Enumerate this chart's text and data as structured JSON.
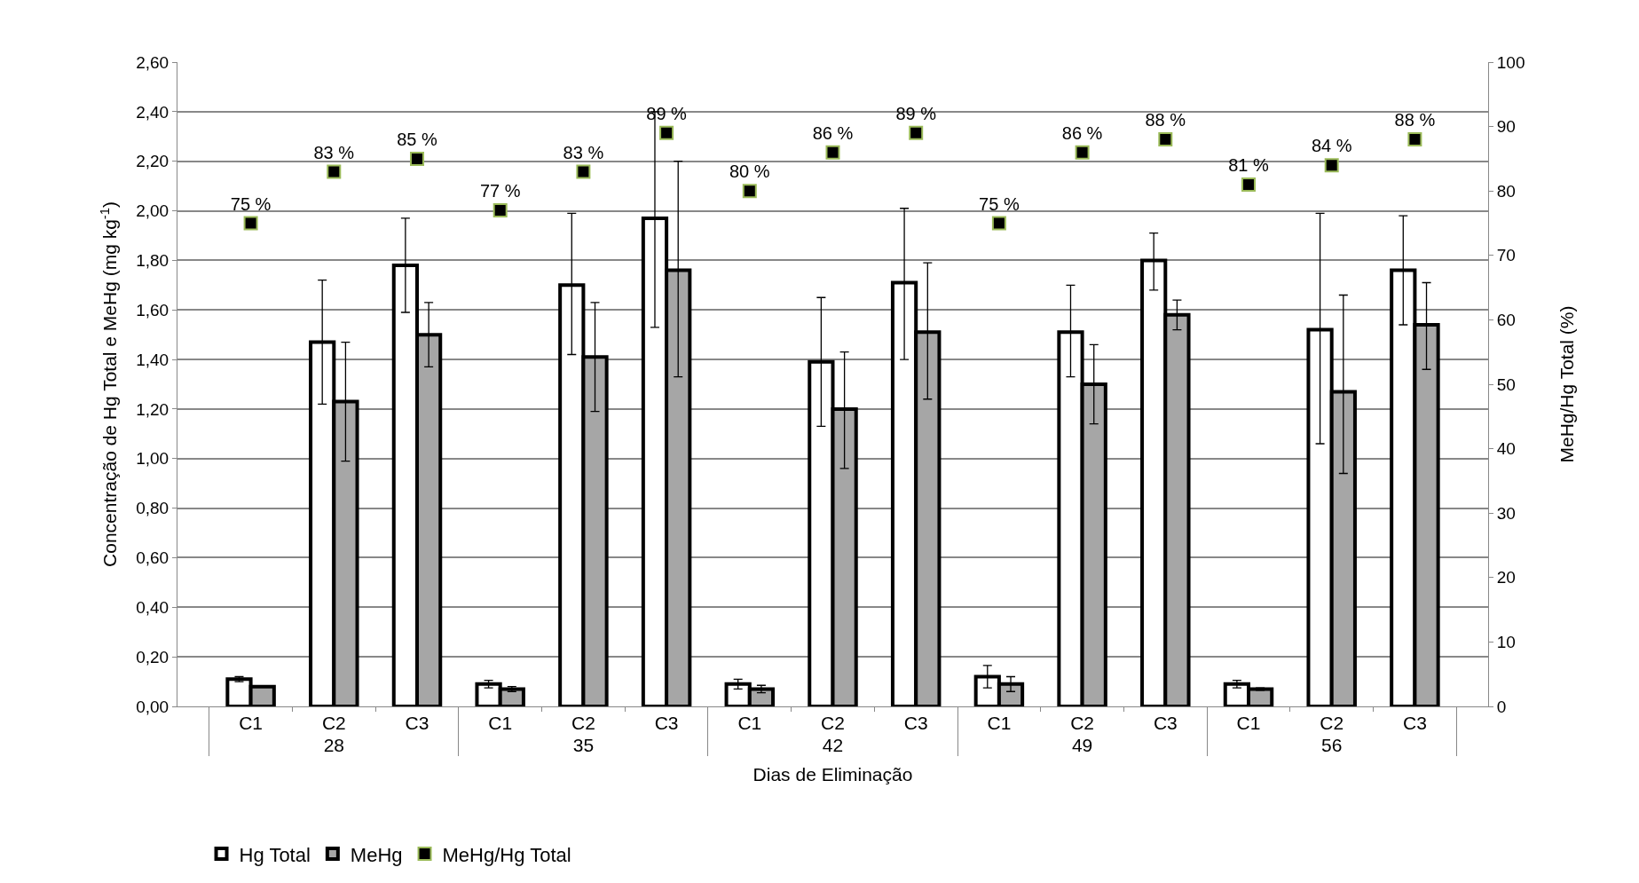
{
  "chart_data": {
    "type": "bar",
    "xlabel": "Dias de Eliminação",
    "ylabel": "Concentração de Hg Total e MeHg (mg kg$^{-1}$)",
    "y2label": "MeHg/Hg Total (%)",
    "categories": [
      "C1",
      "C2",
      "C3",
      "C1",
      "C2",
      "C3",
      "C1",
      "C2",
      "C3",
      "C1",
      "C2",
      "C3",
      "C1",
      "C2",
      "C3"
    ],
    "annotations": [
      "28",
      "35",
      "42",
      "49",
      "56"
    ],
    "series": [
      {
        "name": "Hg Total",
        "color": "#ffffff",
        "values": [
          0.11,
          1.47,
          1.78,
          0.09,
          1.7,
          1.97,
          0.09,
          1.39,
          1.71,
          0.12,
          1.51,
          1.8,
          0.09,
          1.52,
          1.76
        ],
        "errors": [
          0.01,
          [
            1.22,
            1.72
          ],
          [
            1.59,
            1.97
          ],
          0.015,
          [
            1.42,
            1.99
          ],
          [
            1.53,
            2.4
          ],
          0.02,
          [
            1.13,
            1.65
          ],
          [
            1.4,
            2.01
          ],
          0.045,
          [
            1.33,
            1.7
          ],
          [
            1.68,
            1.91
          ],
          0.015,
          [
            1.06,
            1.99
          ],
          [
            1.54,
            1.98
          ]
        ]
      },
      {
        "name": "MeHg",
        "color": "#a6a6a6",
        "values": [
          0.08,
          1.23,
          1.5,
          0.07,
          1.41,
          1.76,
          0.07,
          1.2,
          1.51,
          0.09,
          1.3,
          1.58,
          0.07,
          1.27,
          1.54
        ],
        "errors": [
          null,
          [
            0.99,
            1.47
          ],
          [
            1.37,
            1.63
          ],
          0.01,
          [
            1.19,
            1.63
          ],
          [
            1.33,
            2.2
          ],
          0.015,
          [
            0.96,
            1.43
          ],
          [
            1.24,
            1.79
          ],
          0.03,
          [
            1.14,
            1.46
          ],
          [
            1.52,
            1.64
          ],
          0.005,
          [
            0.94,
            1.66
          ],
          [
            1.36,
            1.71
          ]
        ]
      },
      {
        "name": "MeHg/Hg Total",
        "type": "scatter",
        "axis": "y2",
        "marker": "square",
        "color": "#000000",
        "values": [
          75,
          83,
          85,
          77,
          83,
          89,
          80,
          86,
          89,
          75,
          86,
          88,
          81,
          84,
          88
        ],
        "value_labels": [
          "75 %",
          "83 %",
          "85 %",
          "77 %",
          "83 %",
          "89 %",
          "80 %",
          "86 %",
          "89 %",
          "75 %",
          "86 %",
          "88 %",
          "81 %",
          "84 %",
          "88 %"
        ]
      }
    ],
    "ylim": [
      0,
      2.6
    ],
    "yticks": [
      {
        "value": 0,
        "label": "0,00"
      },
      {
        "value": 0.2,
        "label": "0,20"
      },
      {
        "value": 0.4,
        "label": "0,40"
      },
      {
        "value": 0.6,
        "label": "0,60"
      },
      {
        "value": 0.8,
        "label": "0,80"
      },
      {
        "value": 1.0,
        "label": "1,00"
      },
      {
        "value": 1.2,
        "label": "1,20"
      },
      {
        "value": 1.4,
        "label": "1,40"
      },
      {
        "value": 1.6,
        "label": "1,60"
      },
      {
        "value": 1.8,
        "label": "1,80"
      },
      {
        "value": 2.0,
        "label": "2,00"
      },
      {
        "value": 2.2,
        "label": "2,20"
      },
      {
        "value": 2.4,
        "label": "2,40"
      },
      {
        "value": 2.6,
        "label": "2,60"
      }
    ],
    "y2lim": [
      0,
      100
    ],
    "y2ticks": [
      0,
      10,
      20,
      30,
      40,
      50,
      60,
      70,
      80,
      90,
      100
    ],
    "grid": "y",
    "legend": "bottom"
  }
}
